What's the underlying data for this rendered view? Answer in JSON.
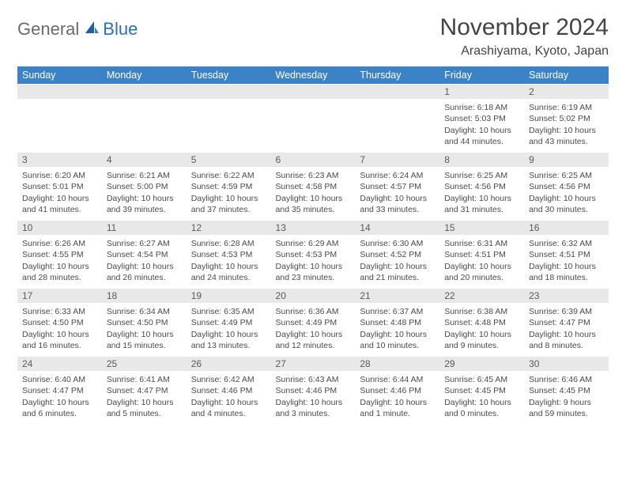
{
  "logo": {
    "part1": "General",
    "part2": "Blue"
  },
  "title": "November 2024",
  "location": "Arashiyama, Kyoto, Japan",
  "colors": {
    "header_bg": "#3b83c6",
    "header_fg": "#ffffff",
    "daynum_bg": "#e8e8e8",
    "text": "#4a4a4a",
    "logo_gray": "#6a6a6a",
    "logo_blue": "#2b6fb5",
    "rule": "#3b83c6"
  },
  "daylabels": [
    "Sunday",
    "Monday",
    "Tuesday",
    "Wednesday",
    "Thursday",
    "Friday",
    "Saturday"
  ],
  "weeks": [
    [
      {
        "n": "",
        "l": [
          "",
          "",
          "",
          ""
        ]
      },
      {
        "n": "",
        "l": [
          "",
          "",
          "",
          ""
        ]
      },
      {
        "n": "",
        "l": [
          "",
          "",
          "",
          ""
        ]
      },
      {
        "n": "",
        "l": [
          "",
          "",
          "",
          ""
        ]
      },
      {
        "n": "",
        "l": [
          "",
          "",
          "",
          ""
        ]
      },
      {
        "n": "1",
        "l": [
          "Sunrise: 6:18 AM",
          "Sunset: 5:03 PM",
          "Daylight: 10 hours",
          "and 44 minutes."
        ]
      },
      {
        "n": "2",
        "l": [
          "Sunrise: 6:19 AM",
          "Sunset: 5:02 PM",
          "Daylight: 10 hours",
          "and 43 minutes."
        ]
      }
    ],
    [
      {
        "n": "3",
        "l": [
          "Sunrise: 6:20 AM",
          "Sunset: 5:01 PM",
          "Daylight: 10 hours",
          "and 41 minutes."
        ]
      },
      {
        "n": "4",
        "l": [
          "Sunrise: 6:21 AM",
          "Sunset: 5:00 PM",
          "Daylight: 10 hours",
          "and 39 minutes."
        ]
      },
      {
        "n": "5",
        "l": [
          "Sunrise: 6:22 AM",
          "Sunset: 4:59 PM",
          "Daylight: 10 hours",
          "and 37 minutes."
        ]
      },
      {
        "n": "6",
        "l": [
          "Sunrise: 6:23 AM",
          "Sunset: 4:58 PM",
          "Daylight: 10 hours",
          "and 35 minutes."
        ]
      },
      {
        "n": "7",
        "l": [
          "Sunrise: 6:24 AM",
          "Sunset: 4:57 PM",
          "Daylight: 10 hours",
          "and 33 minutes."
        ]
      },
      {
        "n": "8",
        "l": [
          "Sunrise: 6:25 AM",
          "Sunset: 4:56 PM",
          "Daylight: 10 hours",
          "and 31 minutes."
        ]
      },
      {
        "n": "9",
        "l": [
          "Sunrise: 6:25 AM",
          "Sunset: 4:56 PM",
          "Daylight: 10 hours",
          "and 30 minutes."
        ]
      }
    ],
    [
      {
        "n": "10",
        "l": [
          "Sunrise: 6:26 AM",
          "Sunset: 4:55 PM",
          "Daylight: 10 hours",
          "and 28 minutes."
        ]
      },
      {
        "n": "11",
        "l": [
          "Sunrise: 6:27 AM",
          "Sunset: 4:54 PM",
          "Daylight: 10 hours",
          "and 26 minutes."
        ]
      },
      {
        "n": "12",
        "l": [
          "Sunrise: 6:28 AM",
          "Sunset: 4:53 PM",
          "Daylight: 10 hours",
          "and 24 minutes."
        ]
      },
      {
        "n": "13",
        "l": [
          "Sunrise: 6:29 AM",
          "Sunset: 4:53 PM",
          "Daylight: 10 hours",
          "and 23 minutes."
        ]
      },
      {
        "n": "14",
        "l": [
          "Sunrise: 6:30 AM",
          "Sunset: 4:52 PM",
          "Daylight: 10 hours",
          "and 21 minutes."
        ]
      },
      {
        "n": "15",
        "l": [
          "Sunrise: 6:31 AM",
          "Sunset: 4:51 PM",
          "Daylight: 10 hours",
          "and 20 minutes."
        ]
      },
      {
        "n": "16",
        "l": [
          "Sunrise: 6:32 AM",
          "Sunset: 4:51 PM",
          "Daylight: 10 hours",
          "and 18 minutes."
        ]
      }
    ],
    [
      {
        "n": "17",
        "l": [
          "Sunrise: 6:33 AM",
          "Sunset: 4:50 PM",
          "Daylight: 10 hours",
          "and 16 minutes."
        ]
      },
      {
        "n": "18",
        "l": [
          "Sunrise: 6:34 AM",
          "Sunset: 4:50 PM",
          "Daylight: 10 hours",
          "and 15 minutes."
        ]
      },
      {
        "n": "19",
        "l": [
          "Sunrise: 6:35 AM",
          "Sunset: 4:49 PM",
          "Daylight: 10 hours",
          "and 13 minutes."
        ]
      },
      {
        "n": "20",
        "l": [
          "Sunrise: 6:36 AM",
          "Sunset: 4:49 PM",
          "Daylight: 10 hours",
          "and 12 minutes."
        ]
      },
      {
        "n": "21",
        "l": [
          "Sunrise: 6:37 AM",
          "Sunset: 4:48 PM",
          "Daylight: 10 hours",
          "and 10 minutes."
        ]
      },
      {
        "n": "22",
        "l": [
          "Sunrise: 6:38 AM",
          "Sunset: 4:48 PM",
          "Daylight: 10 hours",
          "and 9 minutes."
        ]
      },
      {
        "n": "23",
        "l": [
          "Sunrise: 6:39 AM",
          "Sunset: 4:47 PM",
          "Daylight: 10 hours",
          "and 8 minutes."
        ]
      }
    ],
    [
      {
        "n": "24",
        "l": [
          "Sunrise: 6:40 AM",
          "Sunset: 4:47 PM",
          "Daylight: 10 hours",
          "and 6 minutes."
        ]
      },
      {
        "n": "25",
        "l": [
          "Sunrise: 6:41 AM",
          "Sunset: 4:47 PM",
          "Daylight: 10 hours",
          "and 5 minutes."
        ]
      },
      {
        "n": "26",
        "l": [
          "Sunrise: 6:42 AM",
          "Sunset: 4:46 PM",
          "Daylight: 10 hours",
          "and 4 minutes."
        ]
      },
      {
        "n": "27",
        "l": [
          "Sunrise: 6:43 AM",
          "Sunset: 4:46 PM",
          "Daylight: 10 hours",
          "and 3 minutes."
        ]
      },
      {
        "n": "28",
        "l": [
          "Sunrise: 6:44 AM",
          "Sunset: 4:46 PM",
          "Daylight: 10 hours",
          "and 1 minute."
        ]
      },
      {
        "n": "29",
        "l": [
          "Sunrise: 6:45 AM",
          "Sunset: 4:45 PM",
          "Daylight: 10 hours",
          "and 0 minutes."
        ]
      },
      {
        "n": "30",
        "l": [
          "Sunrise: 6:46 AM",
          "Sunset: 4:45 PM",
          "Daylight: 9 hours",
          "and 59 minutes."
        ]
      }
    ]
  ]
}
